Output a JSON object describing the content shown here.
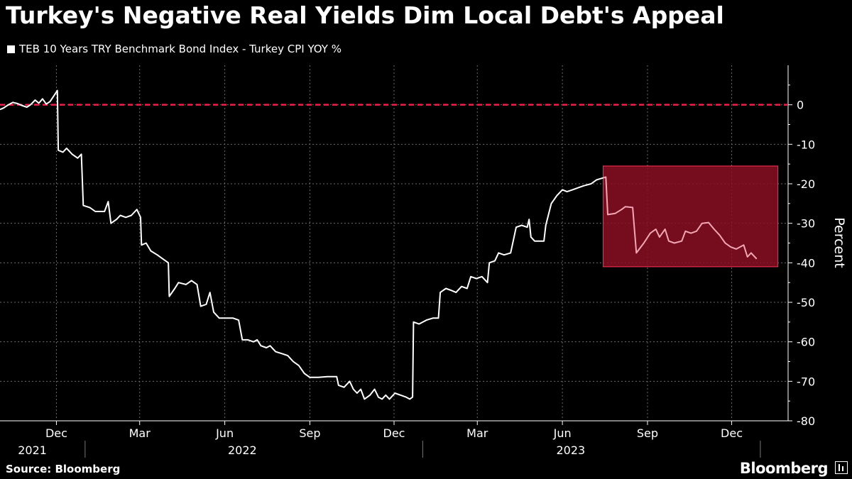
{
  "title": "Turkey's Negative Real Yields Dim Local Debt's Appeal",
  "legend_label": "TEB 10 Years TRY Benchmark Bond Index - Turkey CPI YOY %",
  "source": "Source: Bloomberg",
  "brand": "Bloomberg",
  "colors": {
    "background": "#000000",
    "line": "#ffffff",
    "zero_line": "#e8224a",
    "highlight_fill": "#8b0f24",
    "highlight_stroke": "#ff3355",
    "highlight_line": "#f3a6b4",
    "grid": "#6a6a6a"
  },
  "chart_data": {
    "type": "line",
    "title": "Turkey's Negative Real Yields Dim Local Debt's Appeal",
    "ylabel": "Percent",
    "ylim": [
      -80,
      10
    ],
    "yticks": [
      0,
      -10,
      -20,
      -30,
      -40,
      -50,
      -60,
      -70,
      -80
    ],
    "x_start": "2021-10-01",
    "x_end": "2024-01-31",
    "month_ticks": [
      {
        "date": "2021-12-01",
        "label": "Dec"
      },
      {
        "date": "2022-03-01",
        "label": "Mar"
      },
      {
        "date": "2022-06-01",
        "label": "Jun"
      },
      {
        "date": "2022-09-01",
        "label": "Sep"
      },
      {
        "date": "2022-12-01",
        "label": "Dec"
      },
      {
        "date": "2023-03-01",
        "label": "Mar"
      },
      {
        "date": "2023-06-01",
        "label": "Jun"
      },
      {
        "date": "2023-09-01",
        "label": "Sep"
      },
      {
        "date": "2023-12-01",
        "label": "Dec"
      }
    ],
    "year_labels": [
      {
        "date": "2021-11-05",
        "label": "2021"
      },
      {
        "date": "2022-06-20",
        "label": "2022"
      },
      {
        "date": "2023-06-10",
        "label": "2023"
      }
    ],
    "year_separators": [
      "2022-01-01",
      "2023-01-01",
      "2024-01-01"
    ],
    "reference_line": {
      "y": 0,
      "style": "dashed"
    },
    "highlight": {
      "x_start": "2023-07-15",
      "x_end": "2024-01-20",
      "y_top": -15.5,
      "y_bottom": -41
    },
    "grid": true,
    "series": [
      {
        "values": [
          [
            "2021-10-01",
            -1.2
          ],
          [
            "2021-10-05",
            -0.8
          ],
          [
            "2021-10-10",
            0.0
          ],
          [
            "2021-10-15",
            0.6
          ],
          [
            "2021-10-20",
            0.3
          ],
          [
            "2021-10-25",
            -0.2
          ],
          [
            "2021-10-30",
            -0.6
          ],
          [
            "2021-11-03",
            0.0
          ],
          [
            "2021-11-08",
            1.2
          ],
          [
            "2021-11-12",
            0.4
          ],
          [
            "2021-11-16",
            1.5
          ],
          [
            "2021-11-20",
            0.2
          ],
          [
            "2021-11-24",
            0.8
          ],
          [
            "2021-11-28",
            2.2
          ],
          [
            "2021-12-02",
            3.6
          ],
          [
            "2021-12-03",
            -11.5
          ],
          [
            "2021-12-08",
            -12.0
          ],
          [
            "2021-12-12",
            -11.0
          ],
          [
            "2021-12-18",
            -12.5
          ],
          [
            "2021-12-24",
            -13.5
          ],
          [
            "2021-12-28",
            -12.5
          ],
          [
            "2021-12-30",
            -25.5
          ],
          [
            "2022-01-06",
            -26.0
          ],
          [
            "2022-01-12",
            -27.0
          ],
          [
            "2022-01-22",
            -27.0
          ],
          [
            "2022-01-26",
            -24.5
          ],
          [
            "2022-01-29",
            -30.0
          ],
          [
            "2022-02-04",
            -29.0
          ],
          [
            "2022-02-08",
            -28.0
          ],
          [
            "2022-02-14",
            -28.5
          ],
          [
            "2022-02-20",
            -28.0
          ],
          [
            "2022-02-26",
            -26.5
          ],
          [
            "2022-03-02",
            -28.5
          ],
          [
            "2022-03-03",
            -35.5
          ],
          [
            "2022-03-08",
            -35.0
          ],
          [
            "2022-03-13",
            -37.0
          ],
          [
            "2022-03-20",
            -38.0
          ],
          [
            "2022-03-26",
            -39.0
          ],
          [
            "2022-04-01",
            -40.0
          ],
          [
            "2022-04-02",
            -48.5
          ],
          [
            "2022-04-08",
            -46.5
          ],
          [
            "2022-04-12",
            -45.0
          ],
          [
            "2022-04-20",
            -45.5
          ],
          [
            "2022-04-26",
            -44.5
          ],
          [
            "2022-05-02",
            -45.5
          ],
          [
            "2022-05-06",
            -51.0
          ],
          [
            "2022-05-12",
            -50.5
          ],
          [
            "2022-05-16",
            -47.5
          ],
          [
            "2022-05-20",
            -52.5
          ],
          [
            "2022-05-26",
            -54.0
          ],
          [
            "2022-06-10",
            -54.0
          ],
          [
            "2022-06-16",
            -54.5
          ],
          [
            "2022-06-20",
            -59.5
          ],
          [
            "2022-06-26",
            -59.5
          ],
          [
            "2022-07-02",
            -60.0
          ],
          [
            "2022-07-06",
            -59.5
          ],
          [
            "2022-07-10",
            -61.0
          ],
          [
            "2022-07-16",
            -61.5
          ],
          [
            "2022-07-20",
            -61.0
          ],
          [
            "2022-07-26",
            -62.5
          ],
          [
            "2022-08-02",
            -63.0
          ],
          [
            "2022-08-08",
            -63.5
          ],
          [
            "2022-08-14",
            -65.0
          ],
          [
            "2022-08-20",
            -66.0
          ],
          [
            "2022-08-26",
            -68.0
          ],
          [
            "2022-09-01",
            -69.0
          ],
          [
            "2022-09-10",
            -69.0
          ],
          [
            "2022-09-20",
            -68.8
          ],
          [
            "2022-09-30",
            -68.8
          ],
          [
            "2022-10-02",
            -71.0
          ],
          [
            "2022-10-08",
            -71.5
          ],
          [
            "2022-10-14",
            -70.0
          ],
          [
            "2022-10-18",
            -72.0
          ],
          [
            "2022-10-22",
            -73.0
          ],
          [
            "2022-10-26",
            -72.0
          ],
          [
            "2022-10-30",
            -74.5
          ],
          [
            "2022-11-05",
            -73.5
          ],
          [
            "2022-11-10",
            -72.0
          ],
          [
            "2022-11-14",
            -74.0
          ],
          [
            "2022-11-18",
            -74.5
          ],
          [
            "2022-11-22",
            -73.5
          ],
          [
            "2022-11-26",
            -74.5
          ],
          [
            "2022-12-02",
            -73.0
          ],
          [
            "2022-12-08",
            -73.5
          ],
          [
            "2022-12-14",
            -74.0
          ],
          [
            "2022-12-18",
            -74.5
          ],
          [
            "2022-12-21",
            -74.0
          ],
          [
            "2022-12-22",
            -55.0
          ],
          [
            "2022-12-28",
            -55.5
          ],
          [
            "2023-01-05",
            -54.5
          ],
          [
            "2023-01-12",
            -54.0
          ],
          [
            "2023-01-18",
            -54.0
          ],
          [
            "2023-01-20",
            -47.5
          ],
          [
            "2023-01-26",
            -46.5
          ],
          [
            "2023-02-01",
            -47.0
          ],
          [
            "2023-02-06",
            -47.5
          ],
          [
            "2023-02-12",
            -46.0
          ],
          [
            "2023-02-18",
            -46.5
          ],
          [
            "2023-02-22",
            -43.5
          ],
          [
            "2023-02-28",
            -44.0
          ],
          [
            "2023-03-06",
            -43.5
          ],
          [
            "2023-03-12",
            -45.0
          ],
          [
            "2023-03-14",
            -40.0
          ],
          [
            "2023-03-20",
            -39.5
          ],
          [
            "2023-03-24",
            -37.5
          ],
          [
            "2023-03-30",
            -38.0
          ],
          [
            "2023-04-06",
            -37.5
          ],
          [
            "2023-04-12",
            -31.0
          ],
          [
            "2023-04-18",
            -30.5
          ],
          [
            "2023-04-24",
            -31.0
          ],
          [
            "2023-04-26",
            -29.0
          ],
          [
            "2023-04-28",
            -33.5
          ],
          [
            "2023-05-02",
            -34.5
          ],
          [
            "2023-05-12",
            -34.5
          ],
          [
            "2023-05-14",
            -30.5
          ],
          [
            "2023-05-20",
            -25.0
          ],
          [
            "2023-05-26",
            -23.0
          ],
          [
            "2023-06-01",
            -21.5
          ],
          [
            "2023-06-06",
            -22.0
          ],
          [
            "2023-06-12",
            -21.5
          ],
          [
            "2023-06-18",
            -21.0
          ],
          [
            "2023-06-24",
            -20.5
          ],
          [
            "2023-07-02",
            -20.0
          ],
          [
            "2023-07-08",
            -19.0
          ],
          [
            "2023-07-15",
            -18.5
          ]
        ]
      },
      {
        "highlight": true,
        "values": [
          [
            "2023-07-15",
            -18.5
          ],
          [
            "2023-07-18",
            -18.3
          ],
          [
            "2023-07-20",
            -27.8
          ],
          [
            "2023-07-28",
            -27.5
          ],
          [
            "2023-08-04",
            -26.5
          ],
          [
            "2023-08-08",
            -25.8
          ],
          [
            "2023-08-16",
            -26.0
          ],
          [
            "2023-08-20",
            -37.5
          ],
          [
            "2023-08-28",
            -35.0
          ],
          [
            "2023-09-04",
            -32.5
          ],
          [
            "2023-09-10",
            -31.5
          ],
          [
            "2023-09-14",
            -33.5
          ],
          [
            "2023-09-20",
            -31.5
          ],
          [
            "2023-09-24",
            -34.5
          ],
          [
            "2023-09-30",
            -35.0
          ],
          [
            "2023-10-08",
            -34.5
          ],
          [
            "2023-10-12",
            -32.0
          ],
          [
            "2023-10-18",
            -32.5
          ],
          [
            "2023-10-24",
            -32.0
          ],
          [
            "2023-10-30",
            -30.0
          ],
          [
            "2023-11-06",
            -29.8
          ],
          [
            "2023-11-12",
            -31.5
          ],
          [
            "2023-11-18",
            -33.0
          ],
          [
            "2023-11-24",
            -35.0
          ],
          [
            "2023-11-30",
            -36.0
          ],
          [
            "2023-12-06",
            -36.5
          ],
          [
            "2023-12-14",
            -35.5
          ],
          [
            "2023-12-18",
            -38.5
          ],
          [
            "2023-12-22",
            -37.5
          ],
          [
            "2023-12-28",
            -39.0
          ]
        ]
      }
    ]
  }
}
